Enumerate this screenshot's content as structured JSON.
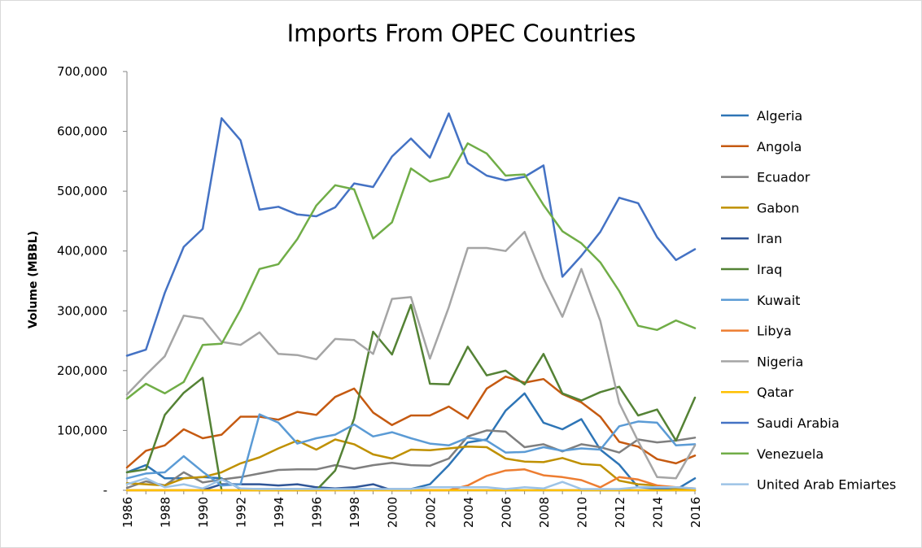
{
  "chart_data": {
    "type": "line",
    "title": "Imports From OPEC Countries",
    "xlabel": "",
    "ylabel": "Volume (MBBL)",
    "ylim": [
      0,
      700000
    ],
    "y_ticks": [
      0,
      100000,
      200000,
      300000,
      400000,
      500000,
      600000,
      700000
    ],
    "y_tick_labels": [
      "-",
      "100,000",
      "200,000",
      "300,000",
      "400,000",
      "500,000",
      "600,000",
      "700,000"
    ],
    "x": [
      1986,
      1987,
      1988,
      1989,
      1990,
      1991,
      1992,
      1993,
      1994,
      1995,
      1996,
      1997,
      1998,
      1999,
      2000,
      2001,
      2002,
      2003,
      2004,
      2005,
      2006,
      2007,
      2008,
      2009,
      2010,
      2011,
      2012,
      2013,
      2014,
      2015,
      2016
    ],
    "x_tick_labels": [
      "1986",
      "1988",
      "1990",
      "1992",
      "1994",
      "1996",
      "1998",
      "2000",
      "2002",
      "2004",
      "2006",
      "2008",
      "2010",
      "2012",
      "2014",
      "2016"
    ],
    "grid": false,
    "legend_position": "right",
    "series": [
      {
        "name": "Algeria",
        "color": "#2e75b6",
        "values": [
          30000,
          42000,
          20000,
          20000,
          22000,
          20000,
          2000,
          2000,
          2000,
          2000,
          2000,
          2000,
          2000,
          2000,
          2000,
          2000,
          10000,
          42000,
          80000,
          85000,
          133000,
          162000,
          113000,
          102000,
          119000,
          68000,
          43000,
          5000,
          3000,
          1000,
          20000
        ]
      },
      {
        "name": "Angola",
        "color": "#c55a11",
        "values": [
          38000,
          66000,
          75000,
          102000,
          87000,
          93000,
          123000,
          123000,
          118000,
          131000,
          126000,
          156000,
          170000,
          130000,
          109000,
          125000,
          125000,
          140000,
          120000,
          170000,
          190000,
          180000,
          186000,
          161000,
          147000,
          123000,
          81000,
          73000,
          52000,
          45000,
          58000
        ]
      },
      {
        "name": "Ecuador",
        "color": "#7f7f7f",
        "values": [
          4000,
          15000,
          8000,
          30000,
          13000,
          18000,
          22000,
          28000,
          34000,
          35000,
          35000,
          42000,
          36000,
          42000,
          46000,
          42000,
          41000,
          53000,
          90000,
          100000,
          98000,
          72000,
          77000,
          65000,
          77000,
          72000,
          63000,
          85000,
          80000,
          83000,
          88000
        ]
      },
      {
        "name": "Gabon",
        "color": "#bf9000",
        "values": [
          12000,
          10000,
          8000,
          20000,
          22000,
          30000,
          45000,
          55000,
          70000,
          83000,
          68000,
          85000,
          77000,
          60000,
          53000,
          68000,
          67000,
          70000,
          73000,
          72000,
          53000,
          48000,
          47000,
          54000,
          44000,
          42000,
          16000,
          10000,
          8000,
          3000,
          0
        ]
      },
      {
        "name": "Iran",
        "color": "#2f5597",
        "values": [
          0,
          0,
          0,
          0,
          0,
          10000,
          10000,
          10000,
          8000,
          10000,
          5000,
          3000,
          5000,
          10000,
          0,
          0,
          0,
          0,
          0,
          0,
          0,
          0,
          0,
          0,
          0,
          0,
          0,
          0,
          0,
          0,
          0
        ]
      },
      {
        "name": "Iraq",
        "color": "#548235",
        "values": [
          30000,
          35000,
          126000,
          163000,
          188000,
          0,
          0,
          0,
          0,
          0,
          0,
          33000,
          120000,
          265000,
          227000,
          310000,
          178000,
          177000,
          240000,
          192000,
          200000,
          177000,
          228000,
          162000,
          150000,
          164000,
          173000,
          125000,
          135000,
          83000,
          155000
        ]
      },
      {
        "name": "Kuwait",
        "color": "#5b9bd5",
        "values": [
          20000,
          28000,
          30000,
          57000,
          31000,
          8000,
          10000,
          127000,
          113000,
          78000,
          87000,
          93000,
          110000,
          90000,
          97000,
          87000,
          78000,
          75000,
          88000,
          83000,
          63000,
          64000,
          72000,
          66000,
          70000,
          68000,
          107000,
          115000,
          113000,
          75000,
          77000
        ]
      },
      {
        "name": "Libya",
        "color": "#ed7d31",
        "values": [
          0,
          0,
          0,
          0,
          0,
          0,
          0,
          0,
          0,
          0,
          0,
          0,
          0,
          0,
          0,
          0,
          0,
          0,
          8000,
          24000,
          33000,
          35000,
          25000,
          22000,
          17000,
          5000,
          22000,
          18000,
          8000,
          5000,
          3000
        ]
      },
      {
        "name": "Nigeria",
        "color": "#a5a5a5",
        "values": [
          160000,
          193000,
          224000,
          292000,
          287000,
          248000,
          243000,
          264000,
          228000,
          226000,
          219000,
          253000,
          251000,
          228000,
          320000,
          323000,
          220000,
          306000,
          405000,
          405000,
          400000,
          432000,
          354000,
          290000,
          370000,
          283000,
          146000,
          82000,
          22000,
          20000,
          75000
        ]
      },
      {
        "name": "Qatar",
        "color": "#ffc000",
        "values": [
          0,
          0,
          0,
          0,
          0,
          0,
          0,
          0,
          0,
          0,
          0,
          0,
          0,
          0,
          0,
          0,
          0,
          0,
          0,
          0,
          0,
          0,
          0,
          0,
          0,
          0,
          0,
          0,
          0,
          0,
          0
        ]
      },
      {
        "name": "Saudi Arabia",
        "color": "#4472c4",
        "values": [
          225000,
          235000,
          330000,
          407000,
          437000,
          622000,
          585000,
          469000,
          474000,
          461000,
          458000,
          473000,
          513000,
          507000,
          558000,
          588000,
          556000,
          630000,
          547000,
          526000,
          518000,
          524000,
          543000,
          357000,
          392000,
          432000,
          489000,
          480000,
          423000,
          385000,
          403000
        ]
      },
      {
        "name": "Venezuela",
        "color": "#70ad47",
        "values": [
          153000,
          178000,
          162000,
          181000,
          243000,
          245000,
          302000,
          370000,
          378000,
          420000,
          476000,
          510000,
          503000,
          421000,
          448000,
          538000,
          516000,
          524000,
          580000,
          563000,
          526000,
          528000,
          477000,
          433000,
          413000,
          381000,
          333000,
          275000,
          268000,
          284000,
          271000
        ]
      },
      {
        "name": "United Arab Emiartes",
        "color": "#9dc3e6",
        "values": [
          10000,
          20000,
          5000,
          10000,
          3000,
          18000,
          3000,
          2000,
          2000,
          2000,
          2000,
          2000,
          2000,
          2000,
          2000,
          2000,
          5000,
          5000,
          5000,
          5000,
          2000,
          5000,
          3000,
          14000,
          2000,
          2000,
          2000,
          5000,
          5000,
          5000,
          3000
        ]
      }
    ]
  }
}
